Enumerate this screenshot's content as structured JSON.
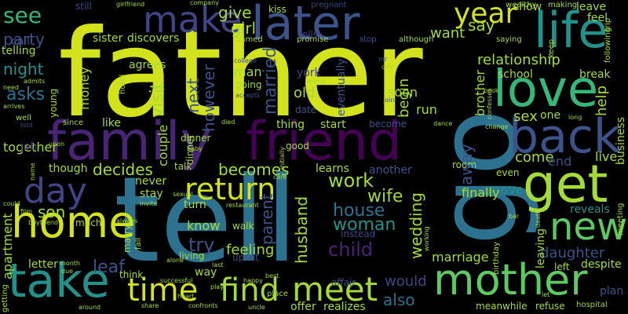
{
  "background": "#000000",
  "colors": {
    "yellow_green": "#d2e21b",
    "light_green": "#a5db36",
    "green": "#5ec962",
    "sea_green": "#35b779",
    "teal": "#21918c",
    "blue_teal": "#2c728e",
    "slate_blue": "#3b528b",
    "indigo": "#414487",
    "purple": "#482475",
    "dark_purple": "#440154"
  },
  "words": {
    "father": "father",
    "tell": "tell",
    "go": "go",
    "family": "family",
    "friend": "friend",
    "make": "make",
    "later": "later",
    "life": "life",
    "love": "love",
    "back": "back",
    "get": "get",
    "new": "new",
    "mother": "mother",
    "home": "home",
    "take": "take",
    "day": "day",
    "time": "time",
    "find": "find",
    "meet": "meet",
    "return": "return",
    "year": "year",
    "see": "see",
    "party": "party",
    "night": "night",
    "asks": "asks",
    "give": "give",
    "girl": "girl",
    "decides": "decides",
    "becomes": "becomes",
    "work": "work",
    "wife": "wife",
    "house": "house",
    "woman": "woman",
    "husband": "husband",
    "child": "child",
    "son": "son",
    "leaf": "leaf",
    "try": "try",
    "feeling": "feeling",
    "also": "also",
    "would": "would",
    "daughter": "daughter",
    "wedding": "wedding",
    "marriage": "marriage",
    "relationship": "relationship",
    "want": "want",
    "say": "say",
    "school": "school",
    "break": "break",
    "sex": "sex",
    "one": "one",
    "help": "help",
    "come": "come",
    "end": "end",
    "live": "live",
    "reveals": "reveals",
    "move": "move",
    "finally": "finally",
    "visit": "visit",
    "next": "next",
    "however": "however",
    "married": "married",
    "old": "old",
    "soon": "soon",
    "run": "run",
    "begin": "begin",
    "parent": "parent",
    "together": "together",
    "though": "though",
    "stay": "stay",
    "never": "never",
    "know": "know",
    "walk": "walk",
    "man": "man",
    "going": "going",
    "money": "money",
    "like": "like",
    "sister": "sister",
    "discovers": "discovers",
    "agrees": "agrees",
    "telling": "telling",
    "call": "call",
    "still": "still",
    "kiss": "kiss",
    "leave": "leave",
    "feel": "feel",
    "show": "show",
    "brother": "brother",
    "eventually": "eventually",
    "start": "start",
    "thing": "thing",
    "become": "become",
    "date": "date",
    "job": "job",
    "learns": "learns",
    "another": "another",
    "away": "away",
    "room": "room",
    "even": "even",
    "letter": "letter",
    "apartment": "apartment",
    "way": "way",
    "think": "think",
    "offer": "offer",
    "realizes": "realizes",
    "refuse": "refuse",
    "meanwhile": "meanwhile",
    "plan": "plan",
    "business": "business",
    "left": "left",
    "despite": "despite",
    "leaving": "leaving",
    "york": "york",
    "dinner": "dinner",
    "good": "good",
    "talk": "talk",
    "turn": "turn",
    "couple": "couple",
    "much": "much",
    "living": "living",
    "affair": "affair",
    "upset": "upset",
    "instead": "instead",
    "tells": "tells",
    "named": "named",
    "promise": "promise",
    "stop": "stop",
    "although": "although",
    "pregnant": "pregnant",
    "wealthy": "wealthy",
    "making": "making",
    "saying": "saying",
    "keep": "keep",
    "trip": "trip",
    "college": "college",
    "city": "city",
    "spend": "spend",
    "accepts": "accepts",
    "join": "join",
    "mr": "mr",
    "hotel": "hotel",
    "ask": "ask",
    "need": "need",
    "admits": "admits",
    "arrives": "arrives",
    "well": "well",
    "told": "told",
    "young": "young",
    "since": "since",
    "died": "died",
    "baby": "baby",
    "upon": "upon",
    "initially": "initially",
    "sexual": "sexual",
    "invite": "invite",
    "care": "care",
    "restaurant": "restaurant",
    "girlfriend": "girlfriend",
    "company": "company",
    "following": "following",
    "book": "book",
    "confesses": "confesses",
    "change": "change",
    "long": "long",
    "dance": "dance",
    "birthday": "birthday",
    "bar": "bar",
    "meeting": "meeting",
    "hospital": "hospital",
    "let": "let",
    "uncle": "uncle",
    "share": "share",
    "confronts": "confronts",
    "around": "around",
    "heart": "heart",
    "successful": "successful",
    "alone": "alone",
    "last": "last",
    "happy": "happy",
    "best": "best",
    "place": "place",
    "play": "play",
    "month": "month",
    "boyfriend": "boyfriend",
    "getting": "getting",
    "could": "could",
    "name": "name",
    "film": "film",
    "due": "due",
    "always": "always",
    "fall": "fall",
    "marry": "marry",
    "working": "working",
    "death": "death"
  }
}
